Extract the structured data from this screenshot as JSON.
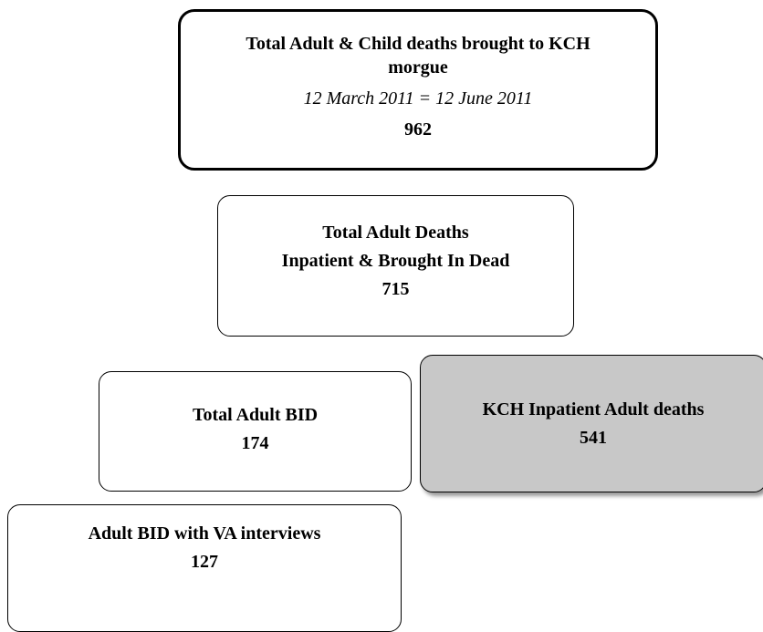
{
  "nodes": [
    {
      "title": "Total Adult & Child deaths brought to KCH morgue",
      "subtitle": "12 March 2011 = 12 June 2011",
      "value": 962
    },
    {
      "title": "Total Adult Deaths",
      "subtitle": "Inpatient & Brought In Dead",
      "value": 715
    },
    {
      "title": "Total Adult BID",
      "value": 174
    },
    {
      "title": "KCH Inpatient Adult deaths",
      "value": 541
    },
    {
      "title": "Adult BID with VA interviews",
      "value": 127
    }
  ]
}
